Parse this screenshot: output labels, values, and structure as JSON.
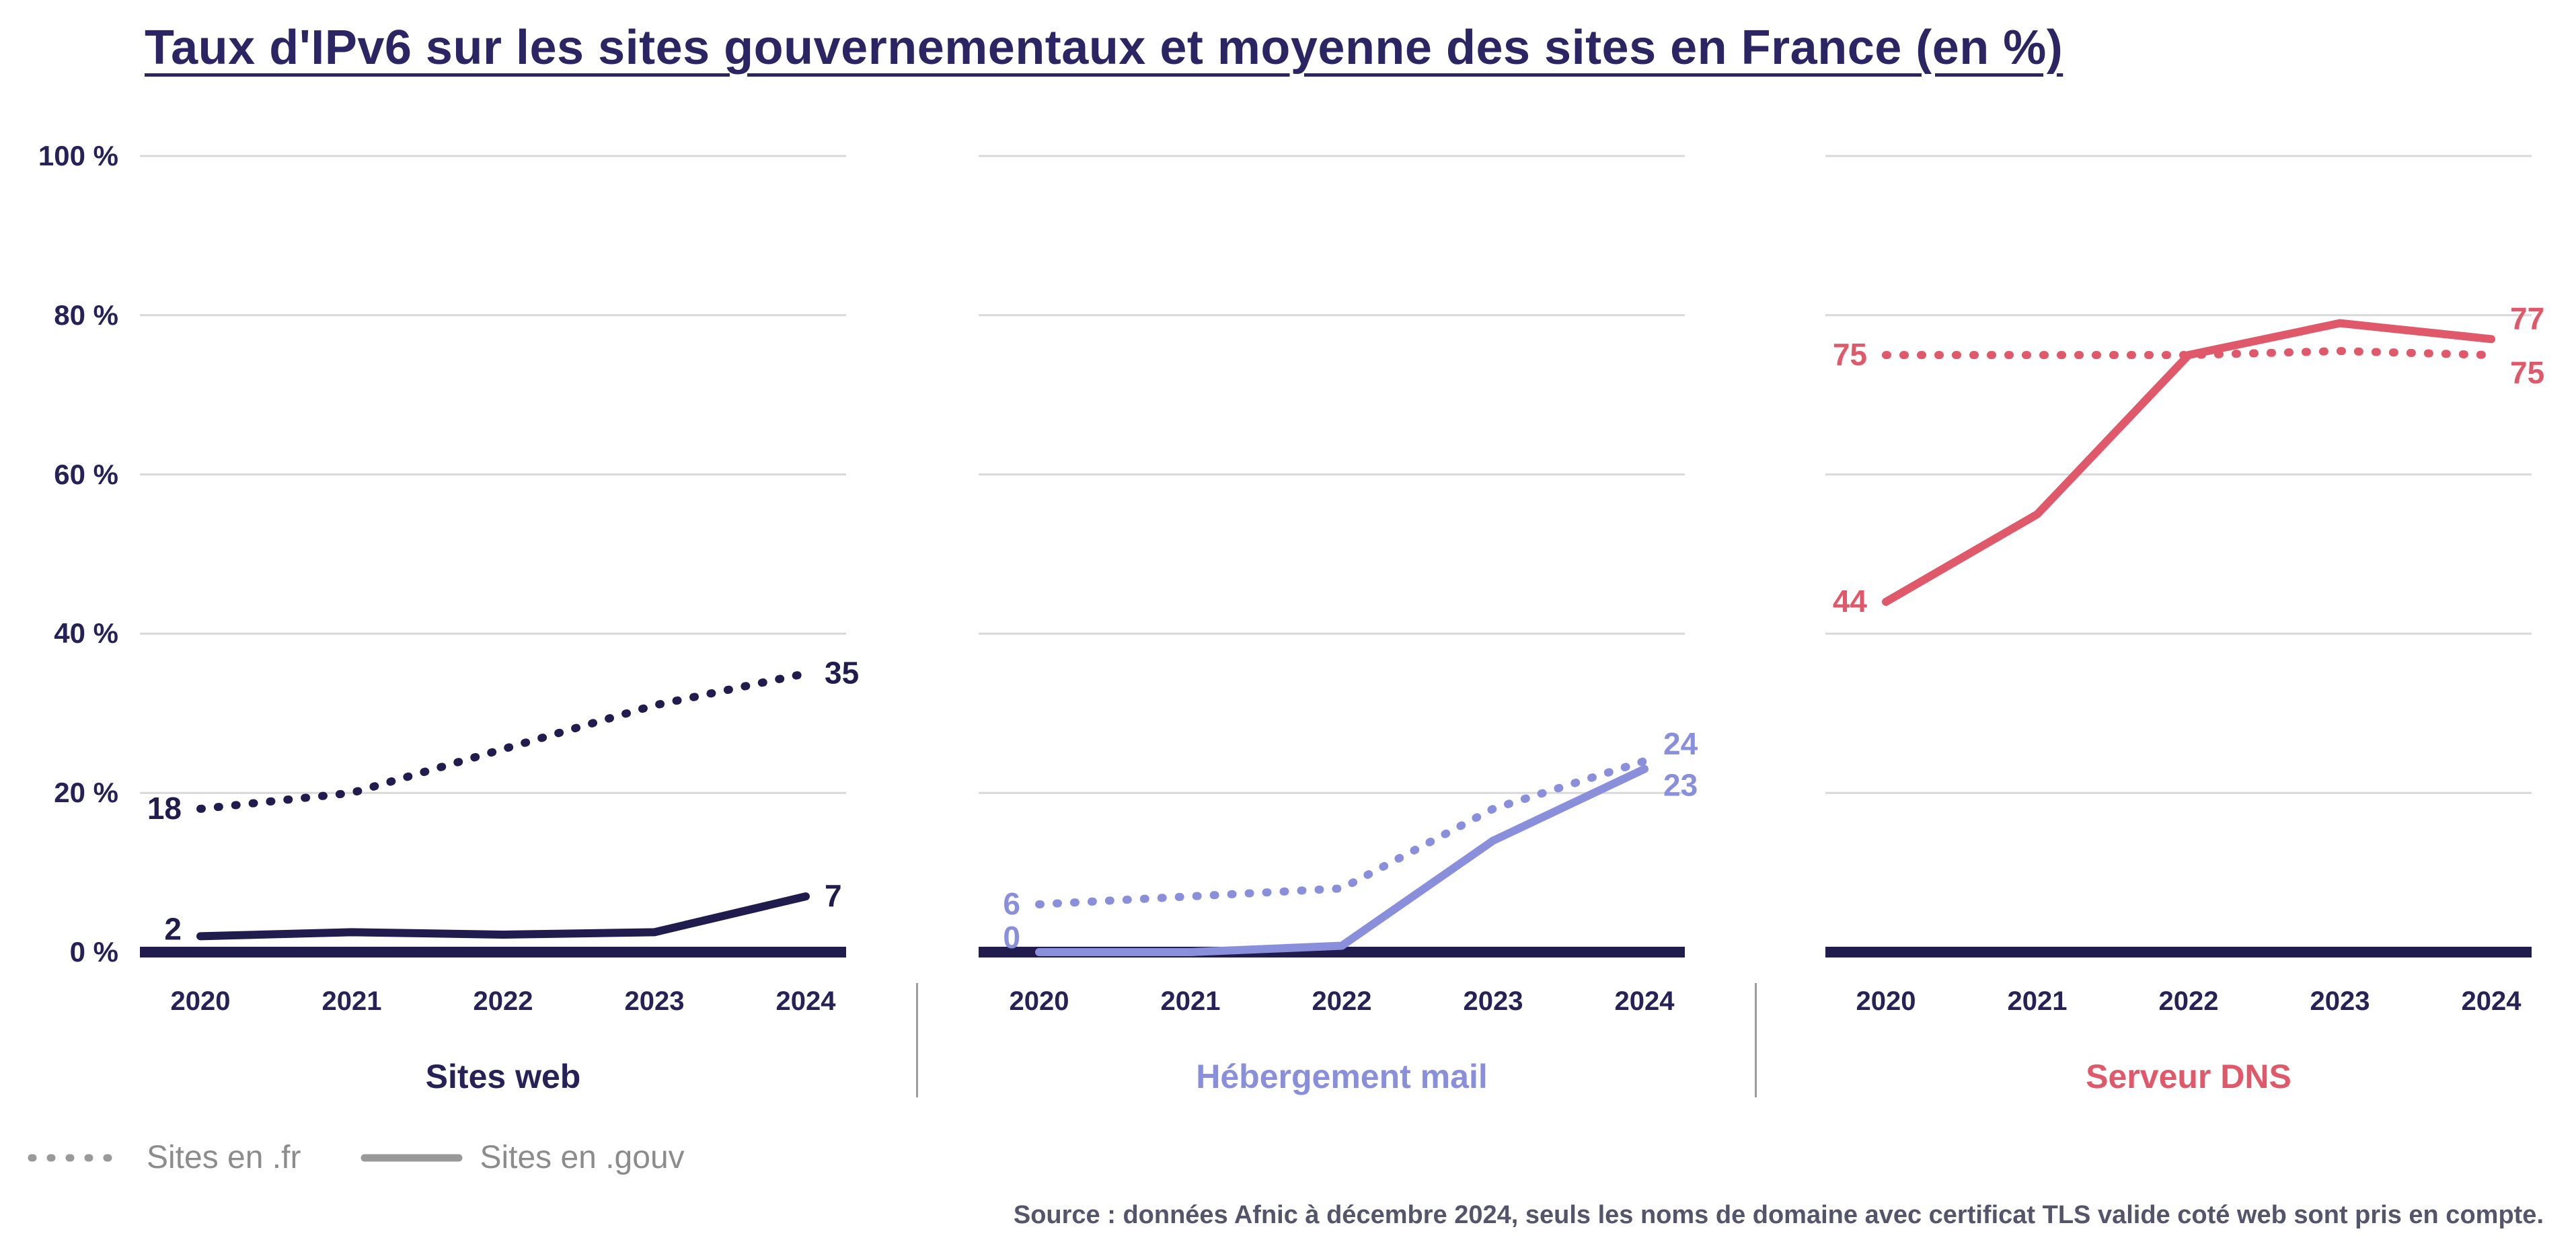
{
  "title": "Taux d'IPv6 sur les sites gouvernementaux et moyenne des sites en France (en %)",
  "source": "Source : données Afnic à décembre 2024, seuls les noms de domaine avec certificat TLS valide coté web sont pris en compte.",
  "y_axis": {
    "ticks": [
      {
        "label": "100 %",
        "value": 100
      },
      {
        "label": "80 %",
        "value": 80
      },
      {
        "label": "60 %",
        "value": 60
      },
      {
        "label": "40 %",
        "value": 40
      },
      {
        "label": "20 %",
        "value": 20
      },
      {
        "label": "0 %",
        "value": 0
      }
    ]
  },
  "legend": {
    "items": [
      {
        "label": "Sites en .fr",
        "style": "dotted",
        "color": "#999999"
      },
      {
        "label": "Sites en .gouv",
        "style": "solid",
        "color": "#999999"
      }
    ],
    "position": "bottom-left"
  },
  "chart_data": {
    "type": "line",
    "x": [
      2020,
      2021,
      2022,
      2023,
      2024
    ],
    "ylim": [
      0,
      100
    ],
    "grid": "horizontal",
    "axis_color": "#262157",
    "baseline_color": "#211c4e",
    "gridline_color": "#d9d9d9",
    "panels": [
      {
        "title": "Sites web",
        "title_color": "#262157",
        "color": "#211c4e",
        "series": [
          {
            "name": "Sites en .fr",
            "style": "dotted",
            "values": [
              18,
              20,
              25.5,
              31,
              35
            ]
          },
          {
            "name": "Sites en .gouv",
            "style": "solid",
            "values": [
              2,
              2.5,
              2.2,
              2.5,
              7
            ]
          }
        ],
        "labels": [
          {
            "text": "18",
            "value": 18,
            "side": "left",
            "dy": 15
          },
          {
            "text": "2",
            "value": 2,
            "side": "left",
            "dy": 5
          },
          {
            "text": "35",
            "value": 35,
            "side": "right",
            "dy": 15
          },
          {
            "text": "7",
            "value": 7,
            "side": "right",
            "dy": 15
          }
        ]
      },
      {
        "title": "Hébergement mail",
        "title_color": "#8a8fdc",
        "color": "#8a8fdc",
        "series": [
          {
            "name": "Sites en .fr",
            "style": "dotted",
            "values": [
              6,
              7,
              8,
              18,
              24
            ]
          },
          {
            "name": "Sites en .gouv",
            "style": "solid",
            "values": [
              0,
              0,
              0.8,
              14,
              23
            ]
          }
        ],
        "labels": [
          {
            "text": "6",
            "value": 6,
            "side": "left",
            "dy": 15
          },
          {
            "text": "0",
            "value": 0,
            "side": "left",
            "dy": -6
          },
          {
            "text": "24",
            "value": 24,
            "side": "right",
            "dy": -10
          },
          {
            "text": "23",
            "value": 23,
            "side": "right",
            "dy": 40
          }
        ]
      },
      {
        "title": "Serveur DNS",
        "title_color": "#e0596a",
        "color": "#e0596a",
        "series": [
          {
            "name": "Sites en .fr",
            "style": "dotted",
            "values": [
              75,
              75,
              75,
              75.5,
              75
            ]
          },
          {
            "name": "Sites en .gouv",
            "style": "solid",
            "values": [
              44,
              55,
              75,
              79,
              77
            ]
          }
        ],
        "labels": [
          {
            "text": "75",
            "value": 75,
            "side": "left",
            "dy": 15
          },
          {
            "text": "44",
            "value": 44,
            "side": "left",
            "dy": 15
          },
          {
            "text": "77",
            "value": 77,
            "side": "right",
            "dy": -15
          },
          {
            "text": "75",
            "value": 75,
            "side": "right",
            "dy": 42
          }
        ]
      }
    ]
  }
}
